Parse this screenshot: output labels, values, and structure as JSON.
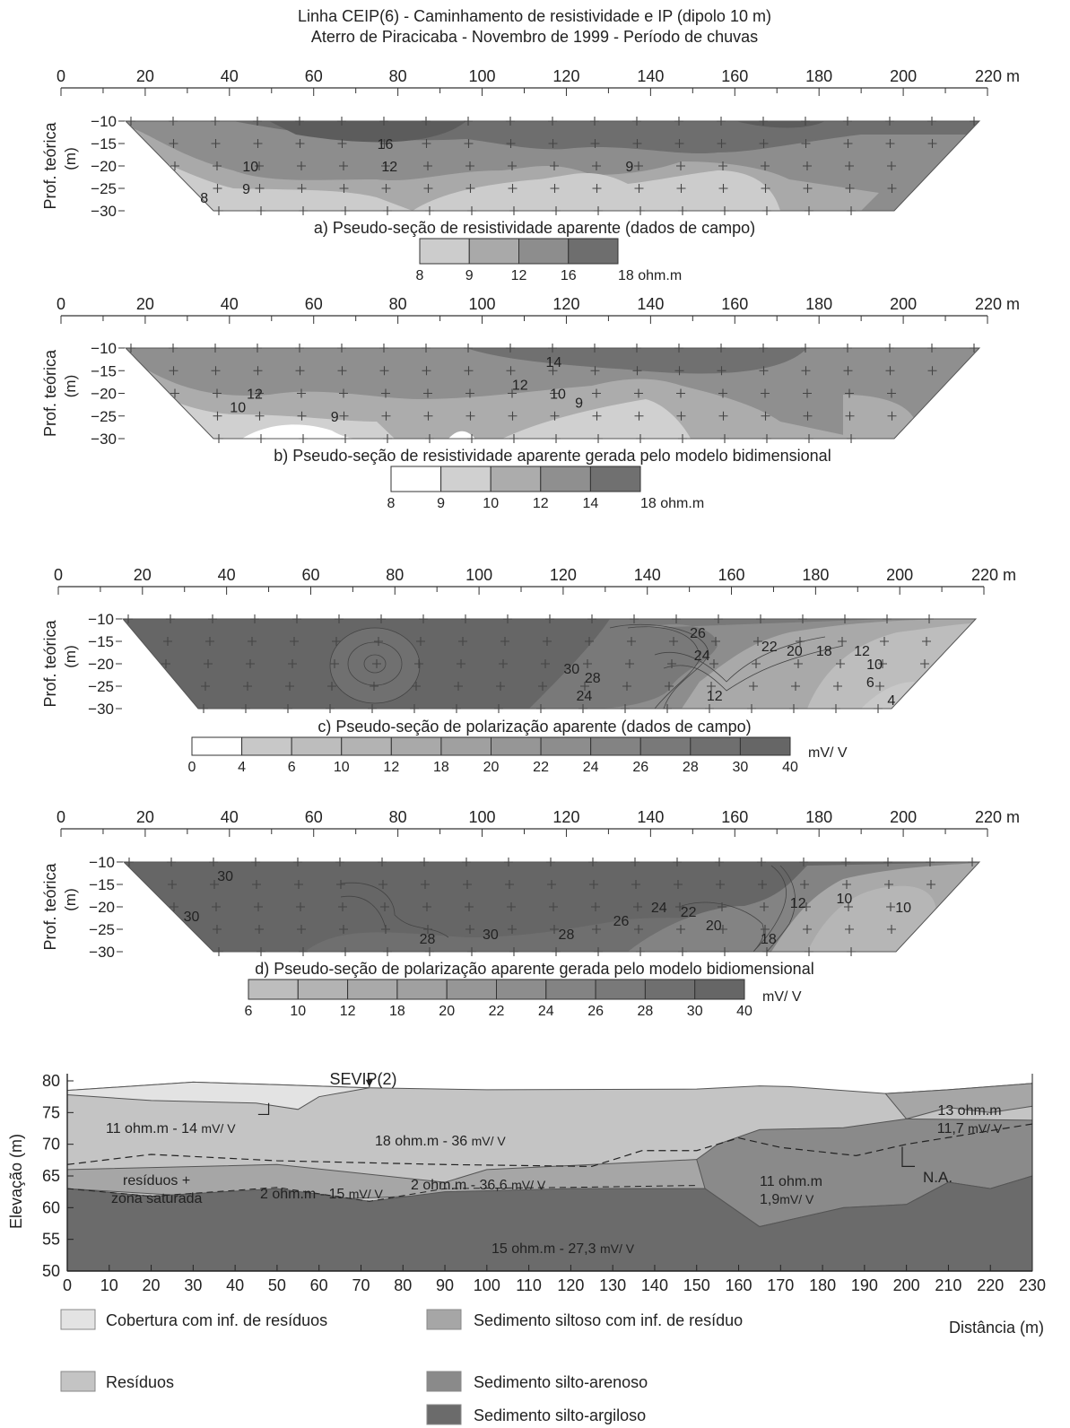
{
  "figure_title": {
    "line1": "Linha CEIP(6) - Caminhamento de resistividade e IP (dipolo 10 m)",
    "line2": "Aterro de Piracicaba - Novembro de 1999 - Período de chuvas"
  },
  "axis_common": {
    "x_ticks": [
      "0",
      "20",
      "40",
      "60",
      "80",
      "100",
      "120",
      "140",
      "160",
      "180",
      "200",
      "220 m"
    ],
    "y_label": "Prof. teórica",
    "y_unit": "(m)",
    "y_ticks": [
      "−10",
      "−15",
      "−20",
      "−25",
      "−30"
    ]
  },
  "chart_data": [
    {
      "type": "heatmap",
      "id": "a",
      "caption": "a) Pseudo-seção de resistividade aparente (dados de campo)",
      "x_range": [
        0,
        220
      ],
      "y_range": [
        -10,
        -30
      ],
      "legend": {
        "ticks": [
          "8",
          "9",
          "12",
          "16",
          "18 ohm.m"
        ],
        "colors": [
          "#cccccc",
          "#a9a9a9",
          "#8d8d8d",
          "#6e6e6e"
        ]
      },
      "contour_labels": [
        {
          "text": "16",
          "x": 77,
          "y": -15
        },
        {
          "text": "10",
          "x": 45,
          "y": -20
        },
        {
          "text": "12",
          "x": 78,
          "y": -20
        },
        {
          "text": "9",
          "x": 135,
          "y": -20
        },
        {
          "text": "9",
          "x": 44,
          "y": -25
        },
        {
          "text": "8",
          "x": 34,
          "y": -27
        }
      ]
    },
    {
      "type": "heatmap",
      "id": "b",
      "caption": "b) Pseudo-seção de resistividade aparente gerada pelo modelo bidimensional",
      "x_range": [
        0,
        220
      ],
      "y_range": [
        -10,
        -30
      ],
      "legend": {
        "ticks": [
          "8",
          "9",
          "10",
          "12",
          "14",
          "18 ohm.m"
        ],
        "colors": [
          "#ffffff",
          "#d0d0d0",
          "#acacac",
          "#8f8f8f",
          "#707070"
        ]
      },
      "contour_labels": [
        {
          "text": "14",
          "x": 117,
          "y": -13
        },
        {
          "text": "12",
          "x": 46,
          "y": -20
        },
        {
          "text": "12",
          "x": 109,
          "y": -18
        },
        {
          "text": "10",
          "x": 118,
          "y": -20
        },
        {
          "text": "9",
          "x": 123,
          "y": -22
        },
        {
          "text": "10",
          "x": 42,
          "y": -23
        },
        {
          "text": "9",
          "x": 65,
          "y": -25
        }
      ]
    },
    {
      "type": "heatmap",
      "id": "c",
      "caption": "c) Pseudo-seção de polarização aparente (dados de campo)",
      "x_range": [
        0,
        220
      ],
      "y_range": [
        -10,
        -30
      ],
      "legend": {
        "ticks": [
          "0",
          "4",
          "6",
          "10",
          "12",
          "18",
          "20",
          "22",
          "24",
          "26",
          "28",
          "30",
          "40"
        ],
        "unit": "mV/ V",
        "colors": [
          "#ffffff",
          "#c8c8c8",
          "#bdbdbd",
          "#b3b3b3",
          "#a9a9a9",
          "#a0a0a0",
          "#969696",
          "#8d8d8d",
          "#838383",
          "#797979",
          "#6f6f6f",
          "#666666"
        ]
      },
      "contour_labels": [
        {
          "text": "26",
          "x": 152,
          "y": -13
        },
        {
          "text": "24",
          "x": 153,
          "y": -18
        },
        {
          "text": "22",
          "x": 169,
          "y": -16
        },
        {
          "text": "20",
          "x": 175,
          "y": -17
        },
        {
          "text": "18",
          "x": 182,
          "y": -17
        },
        {
          "text": "12",
          "x": 191,
          "y": -17
        },
        {
          "text": "10",
          "x": 194,
          "y": -20
        },
        {
          "text": "6",
          "x": 193,
          "y": -24
        },
        {
          "text": "30",
          "x": 122,
          "y": -21
        },
        {
          "text": "28",
          "x": 127,
          "y": -23
        },
        {
          "text": "24",
          "x": 125,
          "y": -27
        },
        {
          "text": "12",
          "x": 156,
          "y": -27
        },
        {
          "text": "4",
          "x": 198,
          "y": -28
        }
      ]
    },
    {
      "type": "heatmap",
      "id": "d",
      "caption": "d) Pseudo-seção de polarização aparente gerada pelo modelo bidiomensional",
      "x_range": [
        0,
        220
      ],
      "y_range": [
        -10,
        -30
      ],
      "legend": {
        "ticks": [
          "6",
          "10",
          "12",
          "18",
          "20",
          "22",
          "24",
          "26",
          "28",
          "30",
          "40"
        ],
        "unit": "mV/ V",
        "colors": [
          "#bdbdbd",
          "#b3b3b3",
          "#a9a9a9",
          "#a0a0a0",
          "#969696",
          "#8d8d8d",
          "#838383",
          "#797979",
          "#6f6f6f",
          "#666666"
        ]
      },
      "contour_labels": [
        {
          "text": "30",
          "x": 39,
          "y": -13
        },
        {
          "text": "30",
          "x": 31,
          "y": -22
        },
        {
          "text": "28",
          "x": 87,
          "y": -27
        },
        {
          "text": "30",
          "x": 102,
          "y": -26
        },
        {
          "text": "28",
          "x": 120,
          "y": -26
        },
        {
          "text": "26",
          "x": 133,
          "y": -23
        },
        {
          "text": "24",
          "x": 142,
          "y": -20
        },
        {
          "text": "22",
          "x": 149,
          "y": -21
        },
        {
          "text": "20",
          "x": 155,
          "y": -24
        },
        {
          "text": "18",
          "x": 168,
          "y": -27
        },
        {
          "text": "12",
          "x": 175,
          "y": -19
        },
        {
          "text": "10",
          "x": 186,
          "y": -18
        },
        {
          "text": "10",
          "x": 200,
          "y": -20
        }
      ]
    },
    {
      "type": "area",
      "id": "geologic-section",
      "ylabel": "Elevação (m)",
      "xlabel": "Distância (m)",
      "x_range": [
        0,
        230
      ],
      "y_range": [
        50,
        80
      ],
      "y_ticks": [
        50,
        55,
        60,
        65,
        70,
        75,
        80
      ],
      "x_ticks": [
        0,
        10,
        20,
        30,
        40,
        50,
        60,
        70,
        80,
        90,
        100,
        110,
        120,
        130,
        140,
        150,
        160,
        170,
        180,
        190,
        200,
        210,
        220,
        230
      ],
      "top_surface": [
        [
          0,
          78.5
        ],
        [
          30,
          79.8
        ],
        [
          50,
          79.4
        ],
        [
          72,
          78.9
        ],
        [
          100,
          78.6
        ],
        [
          150,
          78.7
        ],
        [
          165,
          79.2
        ],
        [
          172,
          79.1
        ],
        [
          195,
          78
        ],
        [
          210,
          78.6
        ],
        [
          230,
          79.6
        ]
      ],
      "sevip_x": 72,
      "annotations": {
        "sevip": "SEVIP(2)",
        "cover": "11 ohm.m - 14",
        "cover_unit": "mV/ V",
        "residues": "18 ohm.m - 36",
        "residues_unit": "mV/ V",
        "right_top_1": "13 ohm.m",
        "right_top_2": "11,7",
        "right_top_unit": "mV/ V",
        "residues_plus": "resíduos +",
        "saturated_zone": "zona saturada",
        "sat_left": "2 ohm.m - 15",
        "sat_left_unit": "mV/ V",
        "sat_mid": "2 ohm.m - 36,6",
        "sat_mid_unit": "mV/ V",
        "sand_1": "11 ohm.m",
        "sand_2": "1,9",
        "sand_unit": "mV/ V",
        "clay": "15 ohm.m - 27,3",
        "clay_unit": "mV/ V",
        "water_table": "N.A."
      }
    }
  ],
  "legend_bottom": {
    "items": [
      {
        "label": "Cobertura com inf. de resíduos",
        "color": "#e3e3e3"
      },
      {
        "label": "Resíduos",
        "color": "#c4c4c4"
      },
      {
        "label": "Sedimento siltoso com inf. de resíduo",
        "color": "#a6a6a6"
      },
      {
        "label": "Sedimento silto-arenoso",
        "color": "#8a8a8a"
      },
      {
        "label": "Sedimento silto-argiloso",
        "color": "#6b6b6b"
      }
    ]
  }
}
